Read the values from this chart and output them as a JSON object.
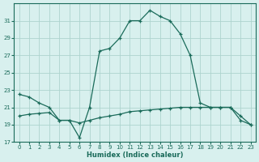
{
  "xlabel": "Humidex (Indice chaleur)",
  "x": [
    0,
    1,
    2,
    3,
    4,
    5,
    6,
    7,
    8,
    9,
    10,
    11,
    12,
    13,
    14,
    15,
    16,
    17,
    18,
    19,
    20,
    21,
    22,
    23
  ],
  "humidex": [
    22.5,
    22.2,
    21.5,
    21.0,
    19.5,
    19.5,
    17.5,
    21.0,
    27.5,
    27.8,
    29.0,
    31.0,
    31.0,
    32.2,
    31.5,
    31.0,
    29.5,
    27.0,
    21.5,
    21.0,
    21.0,
    21.0,
    19.5,
    19.0
  ],
  "temperature": [
    20.0,
    20.2,
    20.3,
    20.4,
    19.5,
    19.5,
    19.2,
    19.5,
    19.8,
    20.0,
    20.2,
    20.5,
    20.6,
    20.7,
    20.8,
    20.9,
    21.0,
    21.0,
    21.0,
    21.0,
    21.0,
    21.0,
    20.0,
    19.0
  ],
  "line_color": "#1a6b5a",
  "bg_color": "#d8f0ee",
  "grid_color": "#aed4ce",
  "ylim": [
    17,
    33
  ],
  "xlim": [
    -0.5,
    23.5
  ],
  "yticks": [
    17,
    19,
    21,
    23,
    25,
    27,
    29,
    31
  ],
  "xticks": [
    0,
    1,
    2,
    3,
    4,
    5,
    6,
    7,
    8,
    9,
    10,
    11,
    12,
    13,
    14,
    15,
    16,
    17,
    18,
    19,
    20,
    21,
    22,
    23
  ]
}
